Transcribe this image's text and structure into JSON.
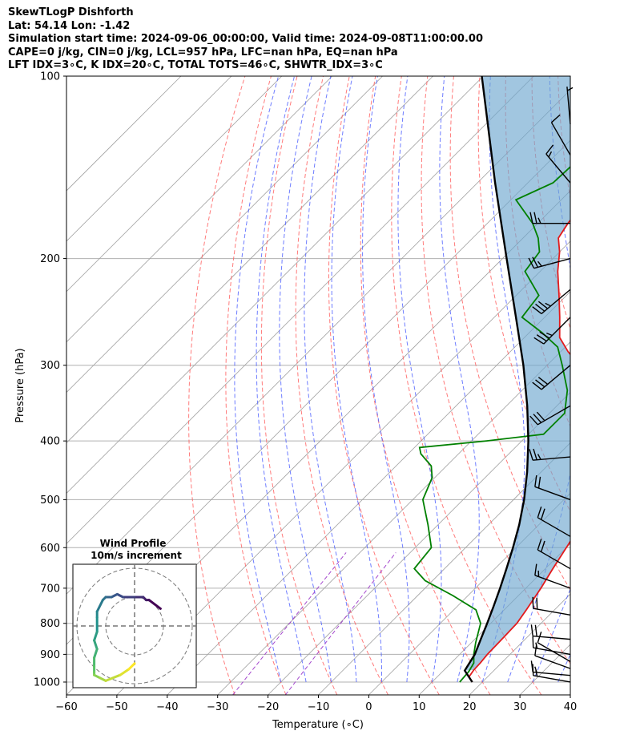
{
  "header": {
    "line1": "SkewTLogP Dishforth",
    "line2": "Lat: 54.14   Lon: -1.42",
    "line3": "Simulation start time: 2024-09-06_00:00:00, Valid time: 2024-09-08T11:00:00.00",
    "line4": "CAPE=0 j/kg, CIN=0 j/kg, LCL=957 hPa, LFC=nan hPa, EQ=nan hPa",
    "line5": "LFT IDX=3∘C, K IDX=20∘C, TOTAL TOTS=46∘C, SHWTR_IDX=3∘C"
  },
  "axes": {
    "xlabel": "Temperature (∘C)",
    "ylabel": "Pressure (hPa)"
  },
  "hodograph": {
    "title": "Wind Profile",
    "subtitle": "10m/s increment"
  },
  "colors": {
    "temperature": "#e31a1c",
    "dewpoint": "#008000",
    "parcel": "#000000",
    "cape_fill": "#6ea8d0",
    "dry_adiabat": "#ff5a5a",
    "moist_adiabat": "#4a5cff",
    "mixing_ratio": "#9b35c9",
    "isotherm": "#a0a0a0"
  },
  "chart_data": {
    "type": "line",
    "skew_degrees": 45,
    "xlim": [
      -60,
      40
    ],
    "ylim": [
      1050,
      100
    ],
    "y_scale": "log",
    "x_ticks": [
      -60,
      -50,
      -40,
      -30,
      -20,
      -10,
      0,
      10,
      20,
      30,
      40
    ],
    "y_ticks": [
      100,
      200,
      300,
      400,
      500,
      600,
      700,
      800,
      900,
      1000
    ],
    "series": [
      {
        "role": "temperature",
        "points": [
          [
            1000,
            18
          ],
          [
            980,
            16.3
          ],
          [
            955,
            15.9
          ],
          [
            930,
            15.8
          ],
          [
            900,
            15.5
          ],
          [
            860,
            15.4
          ],
          [
            800,
            15.2
          ],
          [
            760,
            14.4
          ],
          [
            700,
            13.0
          ],
          [
            650,
            11.5
          ],
          [
            600,
            10.0
          ],
          [
            550,
            8.4
          ],
          [
            500,
            5.5
          ],
          [
            460,
            2.1
          ],
          [
            440,
            0.0
          ],
          [
            420,
            -2.5
          ],
          [
            400,
            -5.0
          ],
          [
            380,
            -7.5
          ],
          [
            360,
            -11.0
          ],
          [
            340,
            -15.0
          ],
          [
            320,
            -19.0
          ],
          [
            300,
            -23.5
          ],
          [
            285,
            -28.5
          ],
          [
            270,
            -33.0
          ],
          [
            250,
            -37.0
          ],
          [
            230,
            -41.5
          ],
          [
            210,
            -46.5
          ],
          [
            195,
            -50.0
          ],
          [
            185,
            -53.0
          ],
          [
            175,
            -54.0
          ],
          [
            160,
            -55.0
          ],
          [
            150,
            -57.0
          ],
          [
            140,
            -60.5
          ],
          [
            130,
            -64.0
          ],
          [
            120,
            -67.5
          ],
          [
            110,
            -70.0
          ],
          [
            100,
            -73.0
          ]
        ]
      },
      {
        "role": "dewpoint",
        "points": [
          [
            1000,
            15.5
          ],
          [
            960,
            15.2
          ],
          [
            930,
            14.5
          ],
          [
            900,
            12.8
          ],
          [
            860,
            10.8
          ],
          [
            800,
            8.0
          ],
          [
            760,
            4.4
          ],
          [
            720,
            -3.0
          ],
          [
            680,
            -11.5
          ],
          [
            650,
            -16.0
          ],
          [
            600,
            -16.8
          ],
          [
            550,
            -22.0
          ],
          [
            500,
            -28.0
          ],
          [
            460,
            -30.5
          ],
          [
            440,
            -33.0
          ],
          [
            420,
            -37.5
          ],
          [
            410,
            -39.0
          ],
          [
            400,
            -27.0
          ],
          [
            390,
            -17.0
          ],
          [
            360,
            -17.0
          ],
          [
            330,
            -21.0
          ],
          [
            300,
            -27.0
          ],
          [
            280,
            -31.5
          ],
          [
            265,
            -37.5
          ],
          [
            250,
            -44.5
          ],
          [
            230,
            -45.5
          ],
          [
            210,
            -53.0
          ],
          [
            195,
            -54.0
          ],
          [
            185,
            -57.0
          ],
          [
            175,
            -61.0
          ],
          [
            160,
            -69.0
          ],
          [
            150,
            -65.0
          ],
          [
            120,
            -64.0
          ],
          [
            100,
            -63.0
          ]
        ]
      },
      {
        "role": "parcel",
        "points": [
          [
            1000,
            18
          ],
          [
            957,
            14.2
          ],
          [
            900,
            13.0
          ],
          [
            850,
            11.2
          ],
          [
            800,
            9.3
          ],
          [
            750,
            7.2
          ],
          [
            700,
            4.9
          ],
          [
            650,
            2.3
          ],
          [
            600,
            -0.6
          ],
          [
            550,
            -3.9
          ],
          [
            500,
            -7.9
          ],
          [
            450,
            -12.8
          ],
          [
            400,
            -18.7
          ],
          [
            350,
            -25.9
          ],
          [
            300,
            -34.7
          ],
          [
            250,
            -45.7
          ],
          [
            200,
            -59.2
          ],
          [
            150,
            -76.5
          ],
          [
            100,
            -100.3
          ]
        ]
      }
    ],
    "wind_barbs": [
      {
        "p": 1000,
        "speed_kt": 15,
        "dir_deg": 280
      },
      {
        "p": 975,
        "speed_kt": 15,
        "dir_deg": 275
      },
      {
        "p": 950,
        "speed_kt": 10,
        "dir_deg": 290
      },
      {
        "p": 925,
        "speed_kt": 10,
        "dir_deg": 300
      },
      {
        "p": 900,
        "speed_kt": 15,
        "dir_deg": 280
      },
      {
        "p": 850,
        "speed_kt": 20,
        "dir_deg": 275
      },
      {
        "p": 775,
        "speed_kt": 20,
        "dir_deg": 280
      },
      {
        "p": 700,
        "speed_kt": 15,
        "dir_deg": 290
      },
      {
        "p": 650,
        "speed_kt": 20,
        "dir_deg": 300
      },
      {
        "p": 575,
        "speed_kt": 20,
        "dir_deg": 300
      },
      {
        "p": 500,
        "speed_kt": 20,
        "dir_deg": 290
      },
      {
        "p": 425,
        "speed_kt": 25,
        "dir_deg": 265
      },
      {
        "p": 350,
        "speed_kt": 30,
        "dir_deg": 240
      },
      {
        "p": 300,
        "speed_kt": 30,
        "dir_deg": 230
      },
      {
        "p": 250,
        "speed_kt": 35,
        "dir_deg": 225
      },
      {
        "p": 225,
        "speed_kt": 35,
        "dir_deg": 230
      },
      {
        "p": 200,
        "speed_kt": 25,
        "dir_deg": 255
      },
      {
        "p": 175,
        "speed_kt": 25,
        "dir_deg": 270
      },
      {
        "p": 150,
        "speed_kt": 15,
        "dir_deg": 320
      },
      {
        "p": 135,
        "speed_kt": 10,
        "dir_deg": 330
      },
      {
        "p": 120,
        "speed_kt": 5,
        "dir_deg": 355
      }
    ],
    "hodograph": {
      "ring_interval_ms": 10,
      "u": [
        9,
        5,
        4,
        3,
        0,
        -4,
        -6,
        -8,
        -10,
        -11,
        -13,
        -13,
        -13,
        -14,
        -13,
        -14,
        -14,
        -14,
        -14,
        -12,
        -10,
        -5,
        -2,
        0
      ],
      "v": [
        6,
        9,
        9,
        10,
        10,
        10,
        11,
        10,
        10,
        9,
        5,
        3,
        -2,
        -5,
        -8,
        -11,
        -14,
        -16,
        -17,
        -18,
        -19,
        -17,
        -15,
        -13
      ]
    }
  }
}
